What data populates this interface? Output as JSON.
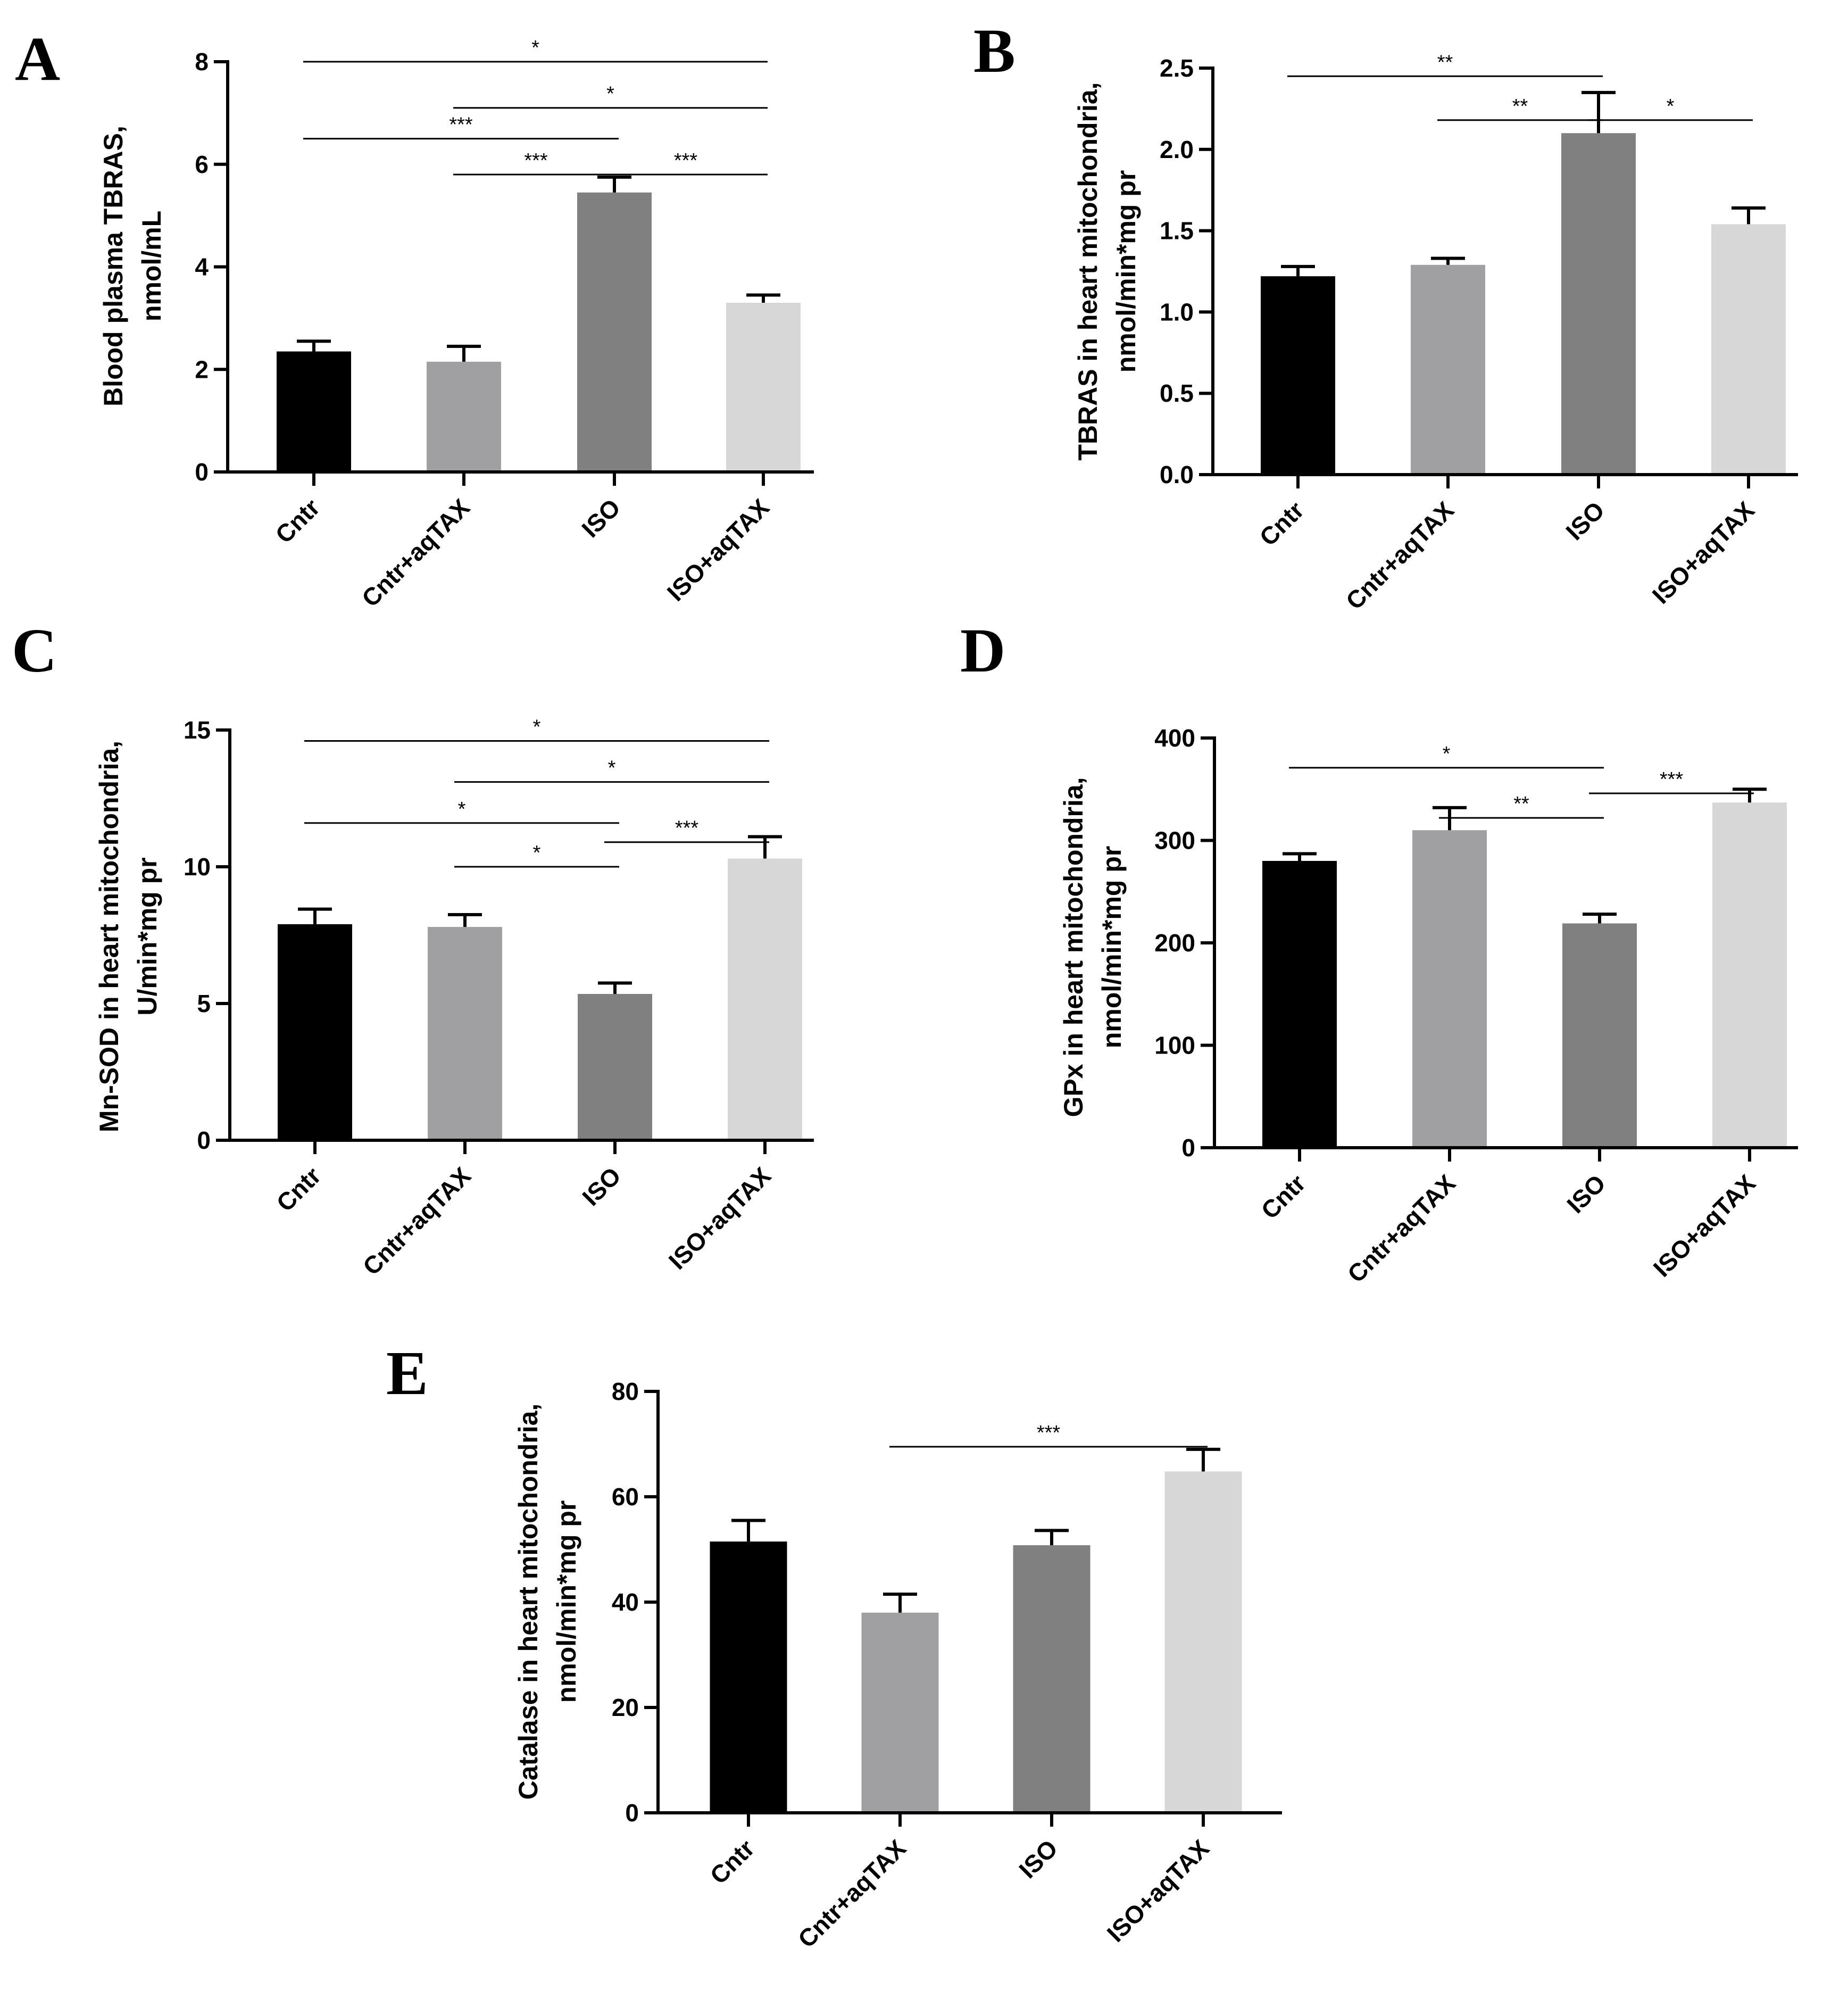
{
  "colors": {
    "Cntr": "#000000",
    "Cntr+aqTAX": "#a0a0a3",
    "ISO": "#808080",
    "ISO+aqTAX": "#d7d7d7",
    "axis": "#000000",
    "sig_line": "#000000"
  },
  "chart_data": [
    {
      "panel": "A",
      "type": "bar",
      "categories": [
        "Cntr",
        "Cntr+aqTAX",
        "ISO",
        "ISO+aqTAX"
      ],
      "values": [
        2.35,
        2.15,
        5.45,
        3.3
      ],
      "errors": [
        0.2,
        0.3,
        0.3,
        0.15
      ],
      "ylabel_lines": [
        "Blood plasma TBRAS,",
        "nmol/mL"
      ],
      "ylim": [
        0,
        8
      ],
      "yticks": [
        0,
        2,
        4,
        6,
        8
      ],
      "ytick_labels": [
        "0",
        "2",
        "4",
        "6",
        "8"
      ],
      "significance": [
        {
          "from": 0,
          "to": 3,
          "label": "*",
          "level": 8.0
        },
        {
          "from": 1,
          "to": 3,
          "label": "*",
          "level": 7.1
        },
        {
          "from": 0,
          "to": 2,
          "label": "***",
          "level": 6.5
        },
        {
          "from": 1,
          "to": 2,
          "label": "***",
          "level": 5.8
        },
        {
          "from": 2,
          "to": 3,
          "label": "***",
          "level": 5.8
        }
      ]
    },
    {
      "panel": "B",
      "type": "bar",
      "categories": [
        "Cntr",
        "Cntr+aqTAX",
        "ISO",
        "ISO+aqTAX"
      ],
      "values": [
        1.22,
        1.29,
        2.1,
        1.54
      ],
      "errors": [
        0.06,
        0.04,
        0.25,
        0.1
      ],
      "ylabel_lines": [
        "TBRAS in heart mitochondria,",
        "nmol/min*mg pr"
      ],
      "ylim": [
        0,
        2.5
      ],
      "yticks": [
        0,
        0.5,
        1,
        1.5,
        2,
        2.5
      ],
      "ytick_labels": [
        "0.0",
        "0.5",
        "1.0",
        "1.5",
        "2.0",
        "2.5"
      ],
      "significance": [
        {
          "from": 0,
          "to": 2,
          "label": "**",
          "level": 2.45
        },
        {
          "from": 1,
          "to": 2,
          "label": "**",
          "level": 2.18
        },
        {
          "from": 2,
          "to": 3,
          "label": "*",
          "level": 2.18
        }
      ]
    },
    {
      "panel": "C",
      "type": "bar",
      "categories": [
        "Cntr",
        "Cntr+aqTAX",
        "ISO",
        "ISO+aqTAX"
      ],
      "values": [
        7.9,
        7.8,
        5.35,
        10.3
      ],
      "errors": [
        0.55,
        0.45,
        0.4,
        0.8
      ],
      "ylabel_lines": [
        "Mn-SOD in heart mitochondria,",
        "U/min*mg pr"
      ],
      "ylim": [
        0,
        15
      ],
      "yticks": [
        0,
        5,
        10,
        15
      ],
      "ytick_labels": [
        "0",
        "5",
        "10",
        "15"
      ],
      "significance": [
        {
          "from": 0,
          "to": 3,
          "label": "*",
          "level": 14.6
        },
        {
          "from": 1,
          "to": 3,
          "label": "*",
          "level": 13.1
        },
        {
          "from": 0,
          "to": 2,
          "label": "*",
          "level": 11.6
        },
        {
          "from": 1,
          "to": 2,
          "label": "*",
          "level": 10.0
        },
        {
          "from": 2,
          "to": 3,
          "label": "***",
          "level": 10.9
        }
      ]
    },
    {
      "panel": "D",
      "type": "bar",
      "categories": [
        "Cntr",
        "Cntr+aqTAX",
        "ISO",
        "ISO+aqTAX"
      ],
      "values": [
        280,
        310,
        219,
        337
      ],
      "errors": [
        7,
        22,
        9,
        13
      ],
      "ylabel_lines": [
        "GPx in heart mitochondria,",
        "nmol/min*mg pr"
      ],
      "ylim": [
        0,
        400
      ],
      "yticks": [
        0,
        100,
        200,
        300,
        400
      ],
      "ytick_labels": [
        "0",
        "100",
        "200",
        "300",
        "400"
      ],
      "significance": [
        {
          "from": 0,
          "to": 2,
          "label": "*",
          "level": 371
        },
        {
          "from": 1,
          "to": 2,
          "label": "**",
          "level": 322
        },
        {
          "from": 2,
          "to": 3,
          "label": "***",
          "level": 346
        }
      ]
    },
    {
      "panel": "E",
      "type": "bar",
      "categories": [
        "Cntr",
        "Cntr+aqTAX",
        "ISO",
        "ISO+aqTAX"
      ],
      "values": [
        51.5,
        38,
        50.8,
        64.8
      ],
      "errors": [
        4,
        3.5,
        2.8,
        4.2
      ],
      "ylabel_lines": [
        "Catalase in heart mitochondria,",
        "nmol/min*mg pr"
      ],
      "ylim": [
        0,
        80
      ],
      "yticks": [
        0,
        20,
        40,
        60,
        80
      ],
      "ytick_labels": [
        "0",
        "20",
        "40",
        "60",
        "80"
      ],
      "significance": [
        {
          "from": 1,
          "to": 3,
          "label": "***",
          "level": 69.5
        }
      ]
    }
  ]
}
